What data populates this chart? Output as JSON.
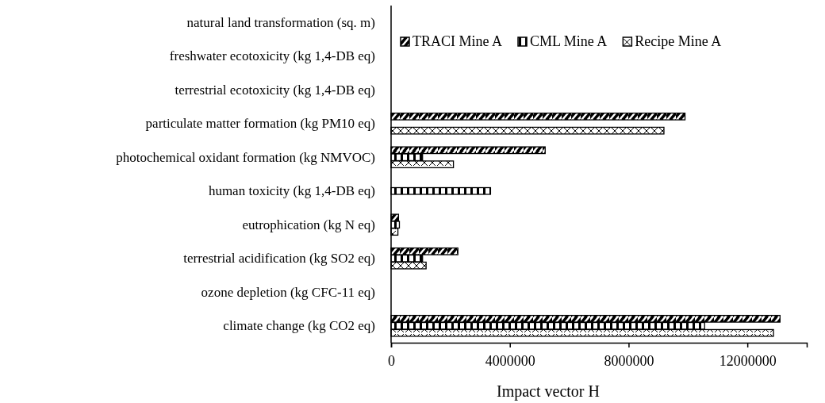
{
  "chart_data": {
    "type": "bar",
    "orientation": "horizontal",
    "xlabel": "Impact vector H",
    "categories": [
      "natural land transformation (sq. m)",
      "freshwater ecotoxicity (kg 1,4-DB eq)",
      "terrestrial ecotoxicity (kg 1,4-DB eq)",
      "particulate matter formation (kg PM10 eq)",
      "photochemical oxidant formation (kg NMVOC)",
      "human toxicity (kg 1,4-DB eq)",
      "eutrophication (kg N eq)",
      "terrestrial acidification (kg SO2 eq)",
      "ozone depletion (kg CFC-11 eq)",
      "climate change (kg CO2 eq)"
    ],
    "series": [
      {
        "name": "TRACI Mine A",
        "color": "#000000",
        "values": [
          0,
          0,
          0,
          9900000,
          5190000,
          0,
          250000,
          2250000,
          0,
          13100000
        ]
      },
      {
        "name": "CML Mine A",
        "color": "#000000",
        "values": [
          0,
          0,
          0,
          0,
          1060000,
          3350000,
          280000,
          1060000,
          0,
          10560000
        ]
      },
      {
        "name": "Recipe Mine A",
        "color": "#000000",
        "values": [
          0,
          0,
          0,
          9190000,
          2100000,
          0,
          230000,
          1180000,
          0,
          12880000
        ]
      }
    ],
    "xlim": [
      0,
      14000000
    ],
    "xticks": [
      0,
      4000000,
      8000000,
      12000000
    ],
    "grid": false,
    "legend": "top"
  }
}
